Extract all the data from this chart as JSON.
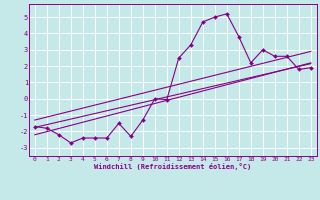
{
  "xlabel": "Windchill (Refroidissement éolien,°C)",
  "xlim": [
    -0.5,
    23.5
  ],
  "ylim": [
    -3.5,
    5.8
  ],
  "yticks": [
    -3,
    -2,
    -1,
    0,
    1,
    2,
    3,
    4,
    5
  ],
  "xticks": [
    0,
    1,
    2,
    3,
    4,
    5,
    6,
    7,
    8,
    9,
    10,
    11,
    12,
    13,
    14,
    15,
    16,
    17,
    18,
    19,
    20,
    21,
    22,
    23
  ],
  "background_color": "#c5e8e8",
  "grid_color": "#ffffff",
  "line_color": "#880088",
  "data_line": {
    "x": [
      0,
      1,
      2,
      3,
      4,
      5,
      6,
      7,
      8,
      9,
      10,
      11,
      12,
      13,
      14,
      15,
      16,
      17,
      18,
      19,
      20,
      21,
      22,
      23
    ],
    "y": [
      -1.7,
      -1.8,
      -2.2,
      -2.7,
      -2.4,
      -2.4,
      -2.4,
      -1.5,
      -2.3,
      -1.3,
      0.0,
      -0.05,
      2.5,
      3.3,
      4.7,
      5.0,
      5.2,
      3.8,
      2.2,
      3.0,
      2.6,
      2.6,
      1.8,
      1.9
    ]
  },
  "regression_line1": {
    "x": [
      0,
      23
    ],
    "y": [
      -2.2,
      2.2
    ]
  },
  "regression_line2": {
    "x": [
      0,
      23
    ],
    "y": [
      -1.3,
      2.9
    ]
  },
  "regression_line3": {
    "x": [
      0,
      23
    ],
    "y": [
      -1.75,
      2.15
    ]
  }
}
